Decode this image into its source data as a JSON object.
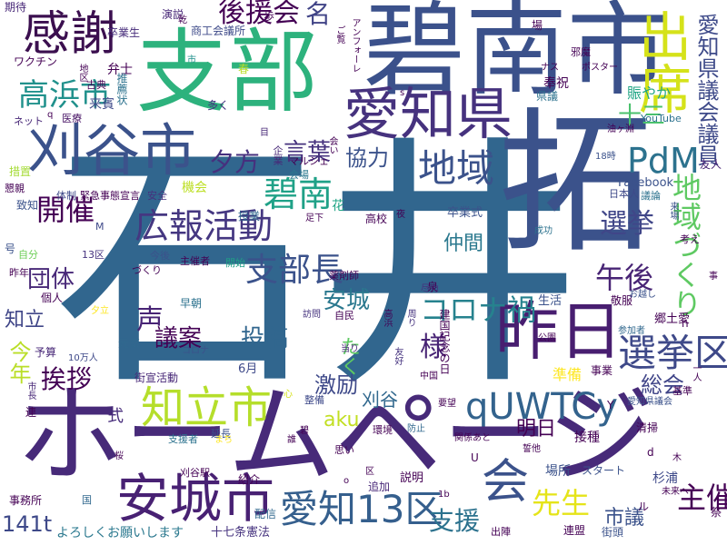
{
  "words": [
    {
      "id": "w1",
      "text": "石井",
      "color": "#31668e"
    },
    {
      "id": "w2",
      "text": "拓",
      "color": "#3b528b"
    },
    {
      "id": "w3",
      "text": "ホームページ",
      "color": "#472a79"
    },
    {
      "id": "w4",
      "text": "碧南市",
      "color": "#3b518b"
    },
    {
      "id": "w5",
      "text": "支部",
      "color": "#2db27d"
    },
    {
      "id": "w6",
      "text": "刈谷市",
      "color": "#3b528b"
    },
    {
      "id": "w7",
      "text": "愛知県",
      "color": "#46327e"
    },
    {
      "id": "w8",
      "text": "感謝",
      "color": "#3b0f4f"
    },
    {
      "id": "w9",
      "text": "出席",
      "color": "#d5e21a"
    },
    {
      "id": "w10",
      "text": "昨日",
      "color": "#481e70"
    },
    {
      "id": "w11",
      "text": "知立市",
      "color": "#b5de2b"
    },
    {
      "id": "w12",
      "text": "安城市",
      "color": "#482173"
    },
    {
      "id": "w13",
      "text": "愛知13区",
      "color": "#355f8d"
    },
    {
      "id": "w14",
      "text": "会",
      "color": "#3b528b"
    },
    {
      "id": "w15",
      "text": "qUWTCy",
      "color": "#33638d"
    },
    {
      "id": "w16",
      "text": "選挙区",
      "color": "#3e4989"
    },
    {
      "id": "w17",
      "text": "広報活動",
      "color": "#453781"
    },
    {
      "id": "w18",
      "text": "高浜市",
      "color": "#21918c"
    },
    {
      "id": "w19",
      "text": "地域",
      "color": "#3b528b"
    },
    {
      "id": "w20",
      "text": "碧南",
      "color": "#1fa187"
    },
    {
      "id": "w21",
      "text": "支部長",
      "color": "#3b528b"
    },
    {
      "id": "w22",
      "text": "地域づくり",
      "color": "#5ec962"
    },
    {
      "id": "w23",
      "text": "PdM",
      "color": "#2c728e"
    },
    {
      "id": "w24",
      "text": "コロナ禍",
      "color": "#26828e"
    },
    {
      "id": "w25",
      "text": "開催",
      "color": "#440154"
    },
    {
      "id": "w26",
      "text": "選挙",
      "color": "#404688"
    },
    {
      "id": "w27",
      "text": "午後",
      "color": "#482475"
    },
    {
      "id": "w28",
      "text": "愛知県議会議員",
      "color": "#3e4a89"
    },
    {
      "id": "w29",
      "text": "後援会",
      "color": "#440154"
    },
    {
      "id": "w30",
      "text": "名",
      "color": "#414487"
    },
    {
      "id": "w31",
      "text": "言葉",
      "color": "#46327e"
    },
    {
      "id": "w32",
      "text": "協力",
      "color": "#3b528b"
    },
    {
      "id": "w33",
      "text": "十三",
      "color": "#4ac16d"
    },
    {
      "id": "w34",
      "text": "賑やか",
      "color": "#21a585"
    },
    {
      "id": "w35",
      "text": "夕方",
      "color": "#46307e"
    },
    {
      "id": "w36",
      "text": "団体",
      "color": "#482878"
    },
    {
      "id": "w37",
      "text": "安城",
      "color": "#2a788e"
    },
    {
      "id": "w38",
      "text": "仲間",
      "color": "#2a788e"
    },
    {
      "id": "w39",
      "text": "様",
      "color": "#482475"
    },
    {
      "id": "w40",
      "text": "声",
      "color": "#482475"
    },
    {
      "id": "w41",
      "text": "議案",
      "color": "#440154"
    },
    {
      "id": "w42",
      "text": "投稿",
      "color": "#31668e"
    },
    {
      "id": "w43",
      "text": "知立",
      "color": "#404688"
    },
    {
      "id": "w44",
      "text": "挨拶",
      "color": "#440154"
    },
    {
      "id": "w45",
      "text": "今年",
      "color": "#bade28"
    },
    {
      "id": "w46",
      "text": "激励",
      "color": "#3e4989"
    },
    {
      "id": "w47",
      "text": "刈谷",
      "color": "#31688e"
    },
    {
      "id": "w48",
      "text": "たく",
      "color": "#5ec962"
    },
    {
      "id": "w49",
      "text": "aku",
      "color": "#c2df23"
    },
    {
      "id": "w50",
      "text": "明日",
      "color": "#440154"
    },
    {
      "id": "w51",
      "text": "総会",
      "color": "#404588"
    },
    {
      "id": "w52",
      "text": "式",
      "color": "#472d7b"
    },
    {
      "id": "w53",
      "text": "先生",
      "color": "#e5e419"
    },
    {
      "id": "w54",
      "text": "支援",
      "color": "#2c728e"
    },
    {
      "id": "w55",
      "text": "主催",
      "color": "#440154"
    },
    {
      "id": "w56",
      "text": "市議",
      "color": "#3b528b"
    },
    {
      "id": "w57",
      "text": "141t",
      "color": "#3e4989"
    },
    {
      "id": "w58",
      "text": "よろしくお願いします",
      "color": "#2a788e"
    },
    {
      "id": "w59",
      "text": "十七条憲法",
      "color": "#46337f"
    },
    {
      "id": "w60",
      "text": "卒業式",
      "color": "#3b528b"
    },
    {
      "id": "w61",
      "text": "Facebook",
      "color": "#3b528b"
    },
    {
      "id": "w62",
      "text": "YouTube",
      "color": "#2c728e"
    },
    {
      "id": "w63",
      "text": "友人",
      "color": "#482475"
    },
    {
      "id": "w64",
      "text": "卒業生",
      "color": "#472d7b"
    },
    {
      "id": "w65",
      "text": "弁士",
      "color": "#440154"
    },
    {
      "id": "w66",
      "text": "来賓",
      "color": "#3e4989"
    },
    {
      "id": "w67",
      "text": "多く",
      "color": "#46337f"
    },
    {
      "id": "w68",
      "text": "ワクチン",
      "color": "#440154"
    },
    {
      "id": "w69",
      "text": "期待",
      "color": "#482878"
    },
    {
      "id": "w70",
      "text": "演説",
      "color": "#482878"
    },
    {
      "id": "w71",
      "text": "商工会議所",
      "color": "#3e4a89"
    },
    {
      "id": "w72",
      "text": "推薦状",
      "color": "#2c728e"
    },
    {
      "id": "w73",
      "text": "古典",
      "color": "#440154"
    },
    {
      "id": "w74",
      "text": "医療",
      "color": "#471365"
    },
    {
      "id": "w75",
      "text": "ネット",
      "color": "#482878"
    },
    {
      "id": "w76",
      "text": "措置",
      "color": "#a5db36"
    },
    {
      "id": "w77",
      "text": "懇親",
      "color": "#440154"
    },
    {
      "id": "w78",
      "text": "致知",
      "color": "#3b528b"
    },
    {
      "id": "w79",
      "text": "体制",
      "color": "#3e4989"
    },
    {
      "id": "w80",
      "text": "緊急事態宣言",
      "color": "#440154"
    },
    {
      "id": "w81",
      "text": "安全",
      "color": "#46327e"
    },
    {
      "id": "w82",
      "text": "機会",
      "color": "#bddf26"
    },
    {
      "id": "w83",
      "text": "授業",
      "color": "#31688e"
    },
    {
      "id": "w84",
      "text": "花",
      "color": "#21a585"
    },
    {
      "id": "w85",
      "text": "高校",
      "color": "#440154"
    },
    {
      "id": "w86",
      "text": "日本人",
      "color": "#3e4989"
    },
    {
      "id": "w87",
      "text": "議論",
      "color": "#2c728e"
    },
    {
      "id": "w88",
      "text": "会場",
      "color": "#2a788e"
    },
    {
      "id": "w89",
      "text": "マルシェ",
      "color": "#440154"
    },
    {
      "id": "w90",
      "text": "企業",
      "color": "#482878"
    },
    {
      "id": "w91",
      "text": "自分",
      "color": "#6ece58"
    },
    {
      "id": "w92",
      "text": "号",
      "color": "#3b528b"
    },
    {
      "id": "w93",
      "text": "昨年",
      "color": "#440154"
    },
    {
      "id": "w94",
      "text": "個人",
      "color": "#440154"
    },
    {
      "id": "w95",
      "text": "予算",
      "color": "#482878"
    },
    {
      "id": "w96",
      "text": "元気",
      "color": "#31688e"
    },
    {
      "id": "w97",
      "text": "早朝",
      "color": "#2c728e"
    },
    {
      "id": "w98",
      "text": "主催者",
      "color": "#440154"
    },
    {
      "id": "w99",
      "text": "開始",
      "color": "#1fa187"
    },
    {
      "id": "w100",
      "text": "今後",
      "color": "#3b528b"
    },
    {
      "id": "w101",
      "text": "づくり",
      "color": "#440154"
    },
    {
      "id": "w102",
      "text": "13区",
      "color": "#46337f"
    },
    {
      "id": "w103",
      "text": "10万人",
      "color": "#3e4989"
    },
    {
      "id": "w104",
      "text": "市長",
      "color": "#482878"
    },
    {
      "id": "w105",
      "text": "連",
      "color": "#440154"
    },
    {
      "id": "w106",
      "text": "6月",
      "color": "#3e4989"
    },
    {
      "id": "w107",
      "text": "街宣活動",
      "color": "#482878"
    },
    {
      "id": "w108",
      "text": "コロナ",
      "color": "#3b528b"
    },
    {
      "id": "w109",
      "text": "薬剤師",
      "color": "#440154"
    },
    {
      "id": "w110",
      "text": "自民",
      "color": "#440154"
    },
    {
      "id": "w111",
      "text": "訪問",
      "color": "#46337f"
    },
    {
      "id": "w112",
      "text": "周り",
      "color": "#46337f"
    },
    {
      "id": "w113",
      "text": "尽力",
      "color": "#46337f"
    },
    {
      "id": "w114",
      "text": "建国記念の日",
      "color": "#440154"
    },
    {
      "id": "w115",
      "text": "生活",
      "color": "#3b528b"
    },
    {
      "id": "w116",
      "text": "準備",
      "color": "#fde725"
    },
    {
      "id": "w117",
      "text": "事業",
      "color": "#440154"
    },
    {
      "id": "w118",
      "text": "敬服",
      "color": "#440154"
    },
    {
      "id": "w119",
      "text": "郷土愛",
      "color": "#440154"
    },
    {
      "id": "w120",
      "text": "成功",
      "color": "#2c728e"
    },
    {
      "id": "w121",
      "text": "公園",
      "color": "#440154"
    },
    {
      "id": "w122",
      "text": "参加者",
      "color": "#31688e"
    },
    {
      "id": "w123",
      "text": "お越し",
      "color": "#3b528b"
    },
    {
      "id": "w124",
      "text": "考え",
      "color": "#440154"
    },
    {
      "id": "w125",
      "text": "来場",
      "color": "#3b528b"
    },
    {
      "id": "w126",
      "text": "事",
      "color": "#440154"
    },
    {
      "id": "w127",
      "text": "基準",
      "color": "#440154"
    },
    {
      "id": "w128",
      "text": "愛知県議会",
      "color": "#3b528b"
    },
    {
      "id": "w129",
      "text": "清掃",
      "color": "#440154"
    },
    {
      "id": "w130",
      "text": "接種",
      "color": "#440154"
    },
    {
      "id": "w131",
      "text": "場所",
      "color": "#3b528b"
    },
    {
      "id": "w132",
      "text": "スタート",
      "color": "#3b528b"
    },
    {
      "id": "w133",
      "text": "杉浦",
      "color": "#3e4989"
    },
    {
      "id": "w134",
      "text": "未来へ",
      "color": "#440154"
    },
    {
      "id": "w135",
      "text": "連盟",
      "color": "#440154"
    },
    {
      "id": "w136",
      "text": "街頭",
      "color": "#3b528b"
    },
    {
      "id": "w137",
      "text": "出陣",
      "color": "#440154"
    },
    {
      "id": "w138",
      "text": "説明",
      "color": "#440154"
    },
    {
      "id": "w139",
      "text": "追加",
      "color": "#482878"
    },
    {
      "id": "w140",
      "text": "配信",
      "color": "#31688e"
    },
    {
      "id": "w141",
      "text": "紹介",
      "color": "#440154"
    },
    {
      "id": "w142",
      "text": "刈谷駅",
      "color": "#440154"
    },
    {
      "id": "w143",
      "text": "事務所",
      "color": "#440154"
    },
    {
      "id": "w144",
      "text": "支援者",
      "color": "#2c728e"
    },
    {
      "id": "w145",
      "text": "延長",
      "color": "#3b528b"
    },
    {
      "id": "w146",
      "text": "整備",
      "color": "#3e4989"
    },
    {
      "id": "w147",
      "text": "環境",
      "color": "#440154"
    },
    {
      "id": "w148",
      "text": "防止",
      "color": "#31688e"
    },
    {
      "id": "w149",
      "text": "思い",
      "color": "#440154"
    },
    {
      "id": "w150",
      "text": "中国",
      "color": "#440154"
    },
    {
      "id": "w151",
      "text": "友好",
      "color": "#46337f"
    },
    {
      "id": "w152",
      "text": "高浜",
      "color": "#440154"
    },
    {
      "id": "w153",
      "text": "歩",
      "color": "#440154"
    },
    {
      "id": "w154",
      "text": "場",
      "color": "#440154"
    },
    {
      "id": "w155",
      "text": "邪魔",
      "color": "#440154"
    },
    {
      "id": "w156",
      "text": "ナス",
      "color": "#440154"
    },
    {
      "id": "w157",
      "text": "ポスター",
      "color": "#440154"
    },
    {
      "id": "w158",
      "text": "奉祝",
      "color": "#440154"
    },
    {
      "id": "w159",
      "text": "県議",
      "color": "#2c728e"
    },
    {
      "id": "w160",
      "text": "油ヶ淵",
      "color": "#440154"
    },
    {
      "id": "w161",
      "text": "18時",
      "color": "#3b528b"
    },
    {
      "id": "w162",
      "text": "アンフォーレ",
      "color": "#440154"
    },
    {
      "id": "w163",
      "text": "ご覧",
      "color": "#440154"
    },
    {
      "id": "w164",
      "text": "地区",
      "color": "#440154"
    },
    {
      "id": "w165",
      "text": "春",
      "color": "#bade28"
    },
    {
      "id": "w166",
      "text": "目",
      "color": "#482878"
    },
    {
      "id": "w167",
      "text": "会い",
      "color": "#440154"
    },
    {
      "id": "w168",
      "text": "足下",
      "color": "#440154"
    },
    {
      "id": "w169",
      "text": "夜",
      "color": "#440154"
    },
    {
      "id": "w170",
      "text": "泉",
      "color": "#440154"
    },
    {
      "id": "w171",
      "text": "当り",
      "color": "#482878"
    },
    {
      "id": "w172",
      "text": "要望",
      "color": "#440154"
    },
    {
      "id": "w173",
      "text": "関係",
      "color": "#440154"
    },
    {
      "id": "w174",
      "text": "誰",
      "color": "#440154"
    },
    {
      "id": "w175",
      "text": "碧",
      "color": "#440154"
    },
    {
      "id": "w176",
      "text": "誓他",
      "color": "#440154"
    },
    {
      "id": "w177",
      "text": "あと",
      "color": "#440154"
    },
    {
      "id": "w178",
      "text": "桜",
      "color": "#440154"
    },
    {
      "id": "w179",
      "text": "国",
      "color": "#31688e"
    },
    {
      "id": "w180",
      "text": "1b",
      "color": "#440154"
    },
    {
      "id": "w181",
      "text": "一人",
      "color": "#440154"
    },
    {
      "id": "w182",
      "text": "まち",
      "color": "#fde725"
    },
    {
      "id": "w183",
      "text": "夕立",
      "color": "#fde725"
    },
    {
      "id": "w184",
      "text": "ル",
      "color": "#440154"
    },
    {
      "id": "w185",
      "text": "U",
      "color": "#440154"
    },
    {
      "id": "w186",
      "text": "Y",
      "color": "#440154"
    },
    {
      "id": "w187",
      "text": "d",
      "color": "#440154"
    },
    {
      "id": "w188",
      "text": "n",
      "color": "#440154"
    },
    {
      "id": "w189",
      "text": "M",
      "color": "#3e4989"
    },
    {
      "id": "w190",
      "text": "木",
      "color": "#440154"
    },
    {
      "id": "w191",
      "text": "祭",
      "color": "#440154"
    },
    {
      "id": "w192",
      "text": "区",
      "color": "#440154"
    },
    {
      "id": "w193",
      "text": "心",
      "color": "#d5e21a"
    },
    {
      "id": "w194",
      "text": "o",
      "color": "#440154"
    },
    {
      "id": "w195",
      "text": "s",
      "color": "#440154"
    },
    {
      "id": "w196",
      "text": "q",
      "color": "#440154"
    },
    {
      "id": "w197",
      "text": "市",
      "color": "#21918c"
    },
    {
      "id": "w198",
      "text": "乾",
      "color": "#440154"
    }
  ]
}
